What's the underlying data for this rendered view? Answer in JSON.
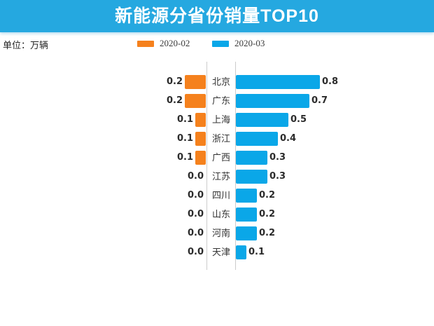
{
  "title": "新能源分省份销量TOP10",
  "unit_label": "单位：万辆",
  "legend": [
    {
      "label": "2020-02",
      "color": "#f5811d"
    },
    {
      "label": "2020-03",
      "color": "#0aa7e8"
    }
  ],
  "colors": {
    "header_bg": "#25a8e0",
    "bar_orange": "#f5811d",
    "bar_blue": "#0aa7e8",
    "axis_line": "#cccccc",
    "value_text": "#2b2b2b"
  },
  "chart_data": {
    "type": "bar",
    "orientation": "horizontal-diverging",
    "title": "新能源分省份销量TOP10",
    "unit": "万辆",
    "categories": [
      "北京",
      "广东",
      "上海",
      "浙江",
      "广西",
      "江苏",
      "四川",
      "山东",
      "河南",
      "天津"
    ],
    "series": [
      {
        "name": "2020-02",
        "side": "left",
        "color": "#f5811d",
        "values": [
          0.2,
          0.2,
          0.1,
          0.1,
          0.1,
          0.0,
          0.0,
          0.0,
          0.0,
          0.0
        ]
      },
      {
        "name": "2020-03",
        "side": "right",
        "color": "#0aa7e8",
        "values": [
          0.8,
          0.7,
          0.5,
          0.4,
          0.3,
          0.3,
          0.2,
          0.2,
          0.2,
          0.1
        ]
      }
    ],
    "value_format": "one-decimal",
    "data_labels": true,
    "grid": false,
    "legend_position": "top"
  }
}
